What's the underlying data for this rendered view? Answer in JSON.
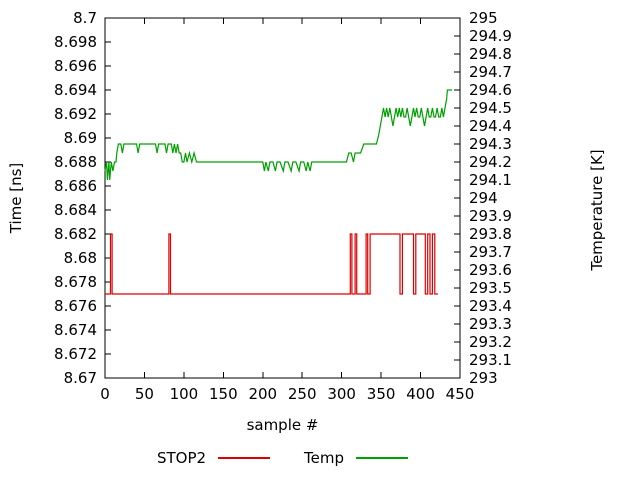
{
  "chart_data": {
    "type": "line",
    "title": "",
    "xlabel": "sample #",
    "ylabel_left": "Time [ns]",
    "ylabel_right": "Temperature [K]",
    "xlim": [
      0,
      450
    ],
    "ylim_left": [
      8.67,
      8.7
    ],
    "ylim_right": [
      293,
      295
    ],
    "xticks": [
      0,
      50,
      100,
      150,
      200,
      250,
      300,
      350,
      400,
      450
    ],
    "yticks_left": [
      8.67,
      8.672,
      8.674,
      8.676,
      8.678,
      8.68,
      8.682,
      8.684,
      8.686,
      8.688,
      8.69,
      8.692,
      8.694,
      8.696,
      8.698,
      8.7
    ],
    "yticks_right": [
      293,
      293.1,
      293.2,
      293.3,
      293.4,
      293.5,
      293.6,
      293.7,
      293.8,
      293.9,
      294,
      294.1,
      294.2,
      294.3,
      294.4,
      294.5,
      294.6,
      294.7,
      294.8,
      294.9,
      295
    ],
    "grid": false,
    "legend_position": "bottom-center",
    "axis_color": "#000000",
    "series": [
      {
        "name": "STOP2",
        "axis": "left",
        "color": "#dd0000",
        "points": [
          [
            0,
            8.677
          ],
          [
            7,
            8.677
          ],
          [
            7,
            8.682
          ],
          [
            9,
            8.682
          ],
          [
            9,
            8.677
          ],
          [
            81,
            8.677
          ],
          [
            81,
            8.682
          ],
          [
            83,
            8.682
          ],
          [
            83,
            8.677
          ],
          [
            311,
            8.677
          ],
          [
            311,
            8.682
          ],
          [
            313,
            8.682
          ],
          [
            313,
            8.677
          ],
          [
            317,
            8.677
          ],
          [
            317,
            8.682
          ],
          [
            319,
            8.682
          ],
          [
            319,
            8.677
          ],
          [
            331,
            8.677
          ],
          [
            331,
            8.682
          ],
          [
            333,
            8.682
          ],
          [
            333,
            8.677
          ],
          [
            336,
            8.677
          ],
          [
            336,
            8.682
          ],
          [
            374,
            8.682
          ],
          [
            374,
            8.677
          ],
          [
            377,
            8.677
          ],
          [
            377,
            8.682
          ],
          [
            391,
            8.682
          ],
          [
            391,
            8.677
          ],
          [
            394,
            8.677
          ],
          [
            394,
            8.682
          ],
          [
            406,
            8.682
          ],
          [
            406,
            8.677
          ],
          [
            409,
            8.677
          ],
          [
            409,
            8.682
          ],
          [
            412,
            8.682
          ],
          [
            412,
            8.677
          ],
          [
            415,
            8.677
          ],
          [
            415,
            8.682
          ],
          [
            418,
            8.682
          ],
          [
            418,
            8.677
          ],
          [
            422,
            8.677
          ]
        ]
      },
      {
        "name": "Temp",
        "axis": "right",
        "color": "#00a000",
        "points": [
          [
            0,
            294.15
          ],
          [
            2,
            294.2
          ],
          [
            3,
            294.1
          ],
          [
            5,
            294.2
          ],
          [
            6,
            294.1
          ],
          [
            8,
            294.2
          ],
          [
            10,
            294.15
          ],
          [
            12,
            294.2
          ],
          [
            14,
            294.2
          ],
          [
            15,
            294.25
          ],
          [
            17,
            294.3
          ],
          [
            20,
            294.3
          ],
          [
            22,
            294.25
          ],
          [
            24,
            294.3
          ],
          [
            28,
            294.3
          ],
          [
            32,
            294.3
          ],
          [
            36,
            294.3
          ],
          [
            40,
            294.3
          ],
          [
            42,
            294.25
          ],
          [
            44,
            294.3
          ],
          [
            48,
            294.3
          ],
          [
            52,
            294.3
          ],
          [
            56,
            294.3
          ],
          [
            60,
            294.3
          ],
          [
            64,
            294.3
          ],
          [
            66,
            294.25
          ],
          [
            68,
            294.3
          ],
          [
            72,
            294.3
          ],
          [
            76,
            294.3
          ],
          [
            78,
            294.25
          ],
          [
            80,
            294.3
          ],
          [
            84,
            294.3
          ],
          [
            86,
            294.25
          ],
          [
            88,
            294.3
          ],
          [
            90,
            294.25
          ],
          [
            92,
            294.3
          ],
          [
            94,
            294.25
          ],
          [
            96,
            294.25
          ],
          [
            98,
            294.2
          ],
          [
            100,
            294.2
          ],
          [
            102,
            294.25
          ],
          [
            104,
            294.2
          ],
          [
            107,
            294.25
          ],
          [
            110,
            294.2
          ],
          [
            113,
            294.25
          ],
          [
            116,
            294.2
          ],
          [
            120,
            294.2
          ],
          [
            124,
            294.2
          ],
          [
            128,
            294.2
          ],
          [
            132,
            294.2
          ],
          [
            136,
            294.2
          ],
          [
            140,
            294.2
          ],
          [
            144,
            294.2
          ],
          [
            148,
            294.2
          ],
          [
            152,
            294.2
          ],
          [
            156,
            294.2
          ],
          [
            160,
            294.2
          ],
          [
            164,
            294.2
          ],
          [
            168,
            294.2
          ],
          [
            172,
            294.2
          ],
          [
            176,
            294.2
          ],
          [
            180,
            294.2
          ],
          [
            184,
            294.2
          ],
          [
            188,
            294.2
          ],
          [
            192,
            294.2
          ],
          [
            196,
            294.2
          ],
          [
            200,
            294.2
          ],
          [
            202,
            294.15
          ],
          [
            204,
            294.2
          ],
          [
            207,
            294.15
          ],
          [
            209,
            294.2
          ],
          [
            213,
            294.2
          ],
          [
            216,
            294.15
          ],
          [
            218,
            294.2
          ],
          [
            222,
            294.2
          ],
          [
            226,
            294.15
          ],
          [
            228,
            294.2
          ],
          [
            232,
            294.2
          ],
          [
            236,
            294.15
          ],
          [
            238,
            294.2
          ],
          [
            242,
            294.2
          ],
          [
            246,
            294.15
          ],
          [
            248,
            294.2
          ],
          [
            252,
            294.2
          ],
          [
            255,
            294.15
          ],
          [
            257,
            294.2
          ],
          [
            260,
            294.15
          ],
          [
            262,
            294.2
          ],
          [
            266,
            294.2
          ],
          [
            270,
            294.2
          ],
          [
            274,
            294.2
          ],
          [
            278,
            294.2
          ],
          [
            282,
            294.2
          ],
          [
            286,
            294.2
          ],
          [
            290,
            294.2
          ],
          [
            294,
            294.2
          ],
          [
            298,
            294.2
          ],
          [
            302,
            294.2
          ],
          [
            306,
            294.2
          ],
          [
            309,
            294.25
          ],
          [
            312,
            294.25
          ],
          [
            315,
            294.2
          ],
          [
            317,
            294.25
          ],
          [
            320,
            294.25
          ],
          [
            324,
            294.25
          ],
          [
            328,
            294.3
          ],
          [
            332,
            294.3
          ],
          [
            336,
            294.3
          ],
          [
            340,
            294.3
          ],
          [
            344,
            294.3
          ],
          [
            347,
            294.35
          ],
          [
            349,
            294.4
          ],
          [
            351,
            294.45
          ],
          [
            353,
            294.5
          ],
          [
            355,
            294.45
          ],
          [
            357,
            294.5
          ],
          [
            359,
            294.45
          ],
          [
            361,
            294.5
          ],
          [
            363,
            294.45
          ],
          [
            365,
            294.4
          ],
          [
            367,
            294.45
          ],
          [
            369,
            294.5
          ],
          [
            371,
            294.45
          ],
          [
            373,
            294.5
          ],
          [
            375,
            294.45
          ],
          [
            377,
            294.5
          ],
          [
            379,
            294.45
          ],
          [
            381,
            294.45
          ],
          [
            383,
            294.5
          ],
          [
            385,
            294.45
          ],
          [
            387,
            294.4
          ],
          [
            389,
            294.45
          ],
          [
            391,
            294.5
          ],
          [
            393,
            294.45
          ],
          [
            395,
            294.5
          ],
          [
            397,
            294.45
          ],
          [
            399,
            294.45
          ],
          [
            401,
            294.5
          ],
          [
            403,
            294.45
          ],
          [
            405,
            294.4
          ],
          [
            407,
            294.45
          ],
          [
            409,
            294.5
          ],
          [
            411,
            294.45
          ],
          [
            413,
            294.45
          ],
          [
            415,
            294.5
          ],
          [
            417,
            294.45
          ],
          [
            419,
            294.45
          ],
          [
            421,
            294.5
          ],
          [
            423,
            294.45
          ],
          [
            425,
            294.45
          ],
          [
            427,
            294.5
          ],
          [
            429,
            294.45
          ],
          [
            431,
            294.5
          ],
          [
            433,
            294.55
          ],
          [
            434,
            294.6
          ],
          [
            437,
            294.6
          ],
          [
            440,
            294.6
          ]
        ]
      }
    ]
  }
}
